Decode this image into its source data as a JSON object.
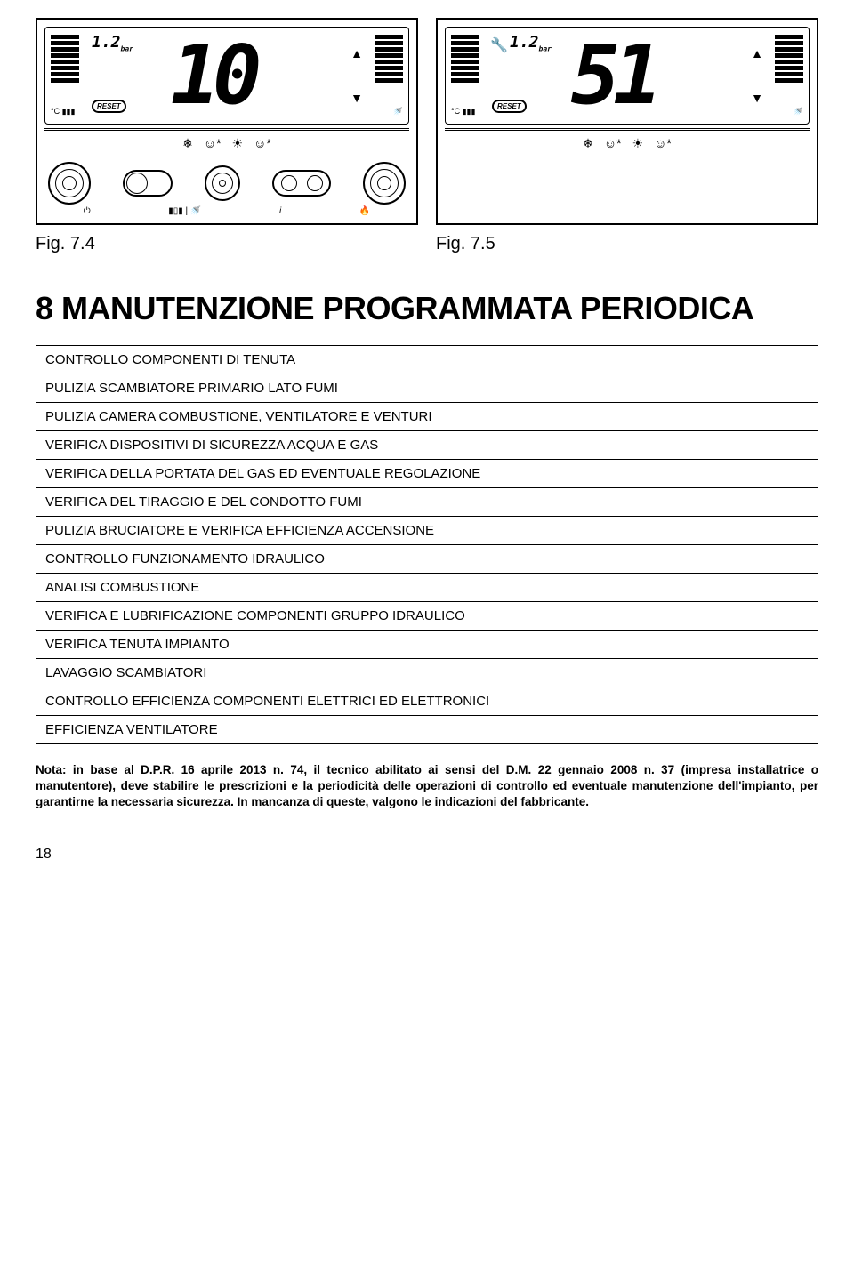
{
  "figures": {
    "left": {
      "caption": "Fig. 7.4",
      "small_digits": "1.2",
      "small_unit": "bar",
      "big_digits": "10",
      "reset_label": "RESET",
      "mode_icons": [
        "❄",
        "☺",
        "☼",
        "☺"
      ],
      "show_wrench": false,
      "show_full_controls": true
    },
    "right": {
      "caption": "Fig. 7.5",
      "small_digits": "1.2",
      "small_unit": "bar",
      "big_digits": "51",
      "reset_label": "RESET",
      "mode_icons": [
        "❄",
        "☺",
        "☼",
        "☺"
      ],
      "show_wrench": true,
      "show_full_controls": false
    }
  },
  "section": {
    "title": "8 MANUTENZIONE PROGRAMMATA PERIODICA"
  },
  "maintenance_rows": [
    "CONTROLLO COMPONENTI DI TENUTA",
    "PULIZIA SCAMBIATORE PRIMARIO LATO FUMI",
    "PULIZIA CAMERA COMBUSTIONE, VENTILATORE E VENTURI",
    "VERIFICA DISPOSITIVI DI SICUREZZA ACQUA E GAS",
    "VERIFICA DELLA PORTATA DEL GAS ED EVENTUALE REGOLAZIONE",
    "VERIFICA DEL TIRAGGIO E DEL CONDOTTO FUMI",
    "PULIZIA BRUCIATORE E VERIFICA EFFICIENZA ACCENSIONE",
    "CONTROLLO FUNZIONAMENTO IDRAULICO",
    "ANALISI COMBUSTIONE",
    "VERIFICA E LUBRIFICAZIONE COMPONENTI GRUPPO IDRAULICO",
    "VERIFICA TENUTA IMPIANTO",
    "LAVAGGIO SCAMBIATORI",
    "CONTROLLO EFFICIENZA COMPONENTI ELETTRICI ED ELETTRONICI",
    "EFFICIENZA VENTILATORE"
  ],
  "footnote": {
    "prefix_bold": "Nota: in base al D.P.R. 16 aprile 2013 n. 74, il tecnico abilitato ai sensi del D.M. 22 gennaio 2008 n. 37 (impresa installatrice o manutentore), deve stabilire le prescrizioni e la periodicità delle operazioni di controllo ed eventuale manutenzione dell'impianto, per garantirne la necessaria sicurezza. In mancanza di queste, valgono le indicazioni del fabbricante."
  },
  "page_number": "18",
  "style": {
    "text_color": "#000000",
    "bg_color": "#ffffff",
    "border_color": "#000000",
    "title_fontsize": 36,
    "table_fontsize": 15,
    "footnote_fontsize": 13.5,
    "caption_fontsize": 20
  }
}
